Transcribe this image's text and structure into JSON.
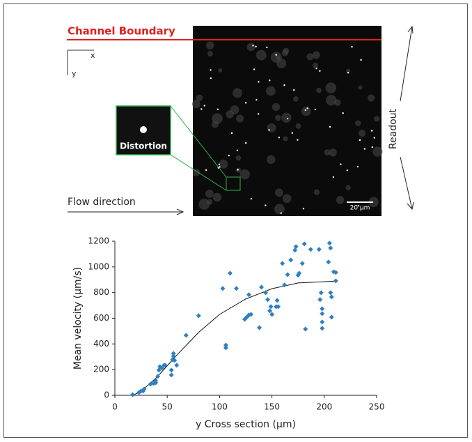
{
  "image_panel": {
    "channel_label": "Channel Boundary",
    "axis_x": "x",
    "axis_y": "y",
    "inset_label": "Distortion",
    "flow_label": "Flow direction",
    "readout_label": "Readout",
    "scale_label": "20 µm"
  },
  "chart_data": {
    "type": "scatter",
    "xlabel": "y Cross section (µm)",
    "ylabel": "Mean velocity (µm/s)",
    "xlim": [
      0,
      250
    ],
    "ylim": [
      0,
      1200
    ],
    "xticks": [
      0,
      50,
      100,
      150,
      200,
      250
    ],
    "yticks": [
      0,
      200,
      400,
      600,
      800,
      1000,
      1200
    ],
    "x": [
      17,
      23,
      25,
      27,
      28,
      34,
      37,
      39,
      39,
      41,
      42,
      43,
      45,
      47,
      48,
      54,
      54,
      56,
      56,
      57,
      59,
      55,
      68,
      80,
      103,
      106,
      106,
      110,
      116,
      124,
      126,
      128,
      130,
      128,
      138,
      140,
      144,
      146,
      148,
      149,
      150,
      154,
      155,
      156,
      160,
      162,
      165,
      168,
      172,
      173,
      175,
      176,
      179,
      181,
      182,
      187,
      195,
      197,
      196,
      198,
      198,
      198,
      198,
      204,
      205,
      206,
      206,
      207,
      207,
      209,
      211,
      211
    ],
    "series": [
      {
        "color": "#2f7fc1",
        "values": [
          5,
          22,
          33,
          33,
          49,
          87,
          92,
          114,
          98,
          147,
          196,
          223,
          212,
          234,
          234,
          196,
          158,
          326,
          304,
          272,
          234,
          277,
          467,
          620,
          832,
          370,
          391,
          951,
          832,
          592,
          609,
          625,
          630,
          783,
          527,
          842,
          799,
          745,
          658,
          690,
          630,
          690,
          739,
          690,
          1027,
          859,
          940,
          1054,
          1130,
          1158,
          935,
          951,
          1027,
          1179,
          516,
          1136,
          1136,
          799,
          745,
          674,
          636,
          571,
          522,
          1038,
          1185,
          1147,
          799,
          766,
          609,
          962,
          957,
          891
        ]
      }
    ],
    "fit": {
      "color": "#111111",
      "x": [
        17,
        25,
        40,
        60,
        80,
        100,
        125,
        150,
        175,
        213
      ],
      "y": [
        0,
        30,
        140,
        320,
        490,
        630,
        750,
        830,
        875,
        890
      ]
    }
  }
}
